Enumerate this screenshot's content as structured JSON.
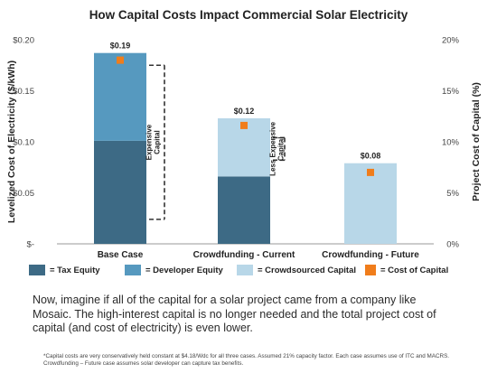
{
  "chart_data": {
    "type": "bar",
    "stacked": true,
    "title": "How Capital Costs Impact Commercial Solar Electricity",
    "ylabel": "Levelized Cost of Electricity ($/kWh)",
    "y2label": "Project Cost of Capital (%)",
    "ylim": [
      0,
      0.2
    ],
    "y2lim": [
      0,
      20
    ],
    "yticks": [
      {
        "value": 0,
        "label": "$-"
      },
      {
        "value": 0.05,
        "label": "$0.05"
      },
      {
        "value": 0.1,
        "label": "$0.10"
      },
      {
        "value": 0.15,
        "label": "$0.15"
      },
      {
        "value": 0.2,
        "label": "$0.20"
      }
    ],
    "y2ticks": [
      {
        "value": 0,
        "label": "0%"
      },
      {
        "value": 5,
        "label": "5%"
      },
      {
        "value": 10,
        "label": "10%"
      },
      {
        "value": 15,
        "label": "15%"
      },
      {
        "value": 20,
        "label": "20%"
      }
    ],
    "categories": [
      "Base Case",
      "Crowdfunding - Current",
      "Crowdfunding - Future"
    ],
    "series": [
      {
        "name": "= Tax Equity",
        "color": "#3d6a85",
        "values": [
          0.101,
          0.066,
          0
        ]
      },
      {
        "name": "= Developer Equity",
        "color": "#5699bf",
        "values": [
          0.086,
          0,
          0
        ]
      },
      {
        "name": "= Crowdsourced Capital",
        "color": "#b8d7e8",
        "values": [
          0,
          0.057,
          0.079
        ]
      }
    ],
    "total_labels": [
      "$0.19",
      "$0.12",
      "$0.08"
    ],
    "cost_of_capital": {
      "name": "= Cost of Capital",
      "color": "#f07d1b",
      "values": [
        18,
        11.6,
        7
      ]
    },
    "annotations": [
      {
        "text": [
          "Expensive",
          "Capital"
        ],
        "bar": 0,
        "from": 0.024,
        "to": 0.175
      },
      {
        "text": [
          "Less Expensive",
          "Capital"
        ],
        "bar": 1,
        "from": 0.082,
        "to": 0.104
      }
    ],
    "grid": false,
    "legend_position": "bottom"
  },
  "caption": "Now, imagine if all of the capital for a solar project came from a company like Mosaic. The high-interest capital is no longer needed and the total project cost of capital (and cost of electricity) is even lower.",
  "footnote": "*Capital costs are very conservatively held constant at $4.18/Wdc for all three cases. Assumed 21% capacity factor. Each case assumes use of ITC and MACRS. Crowdfunding – Future case assumes solar developer can capture tax benefits."
}
